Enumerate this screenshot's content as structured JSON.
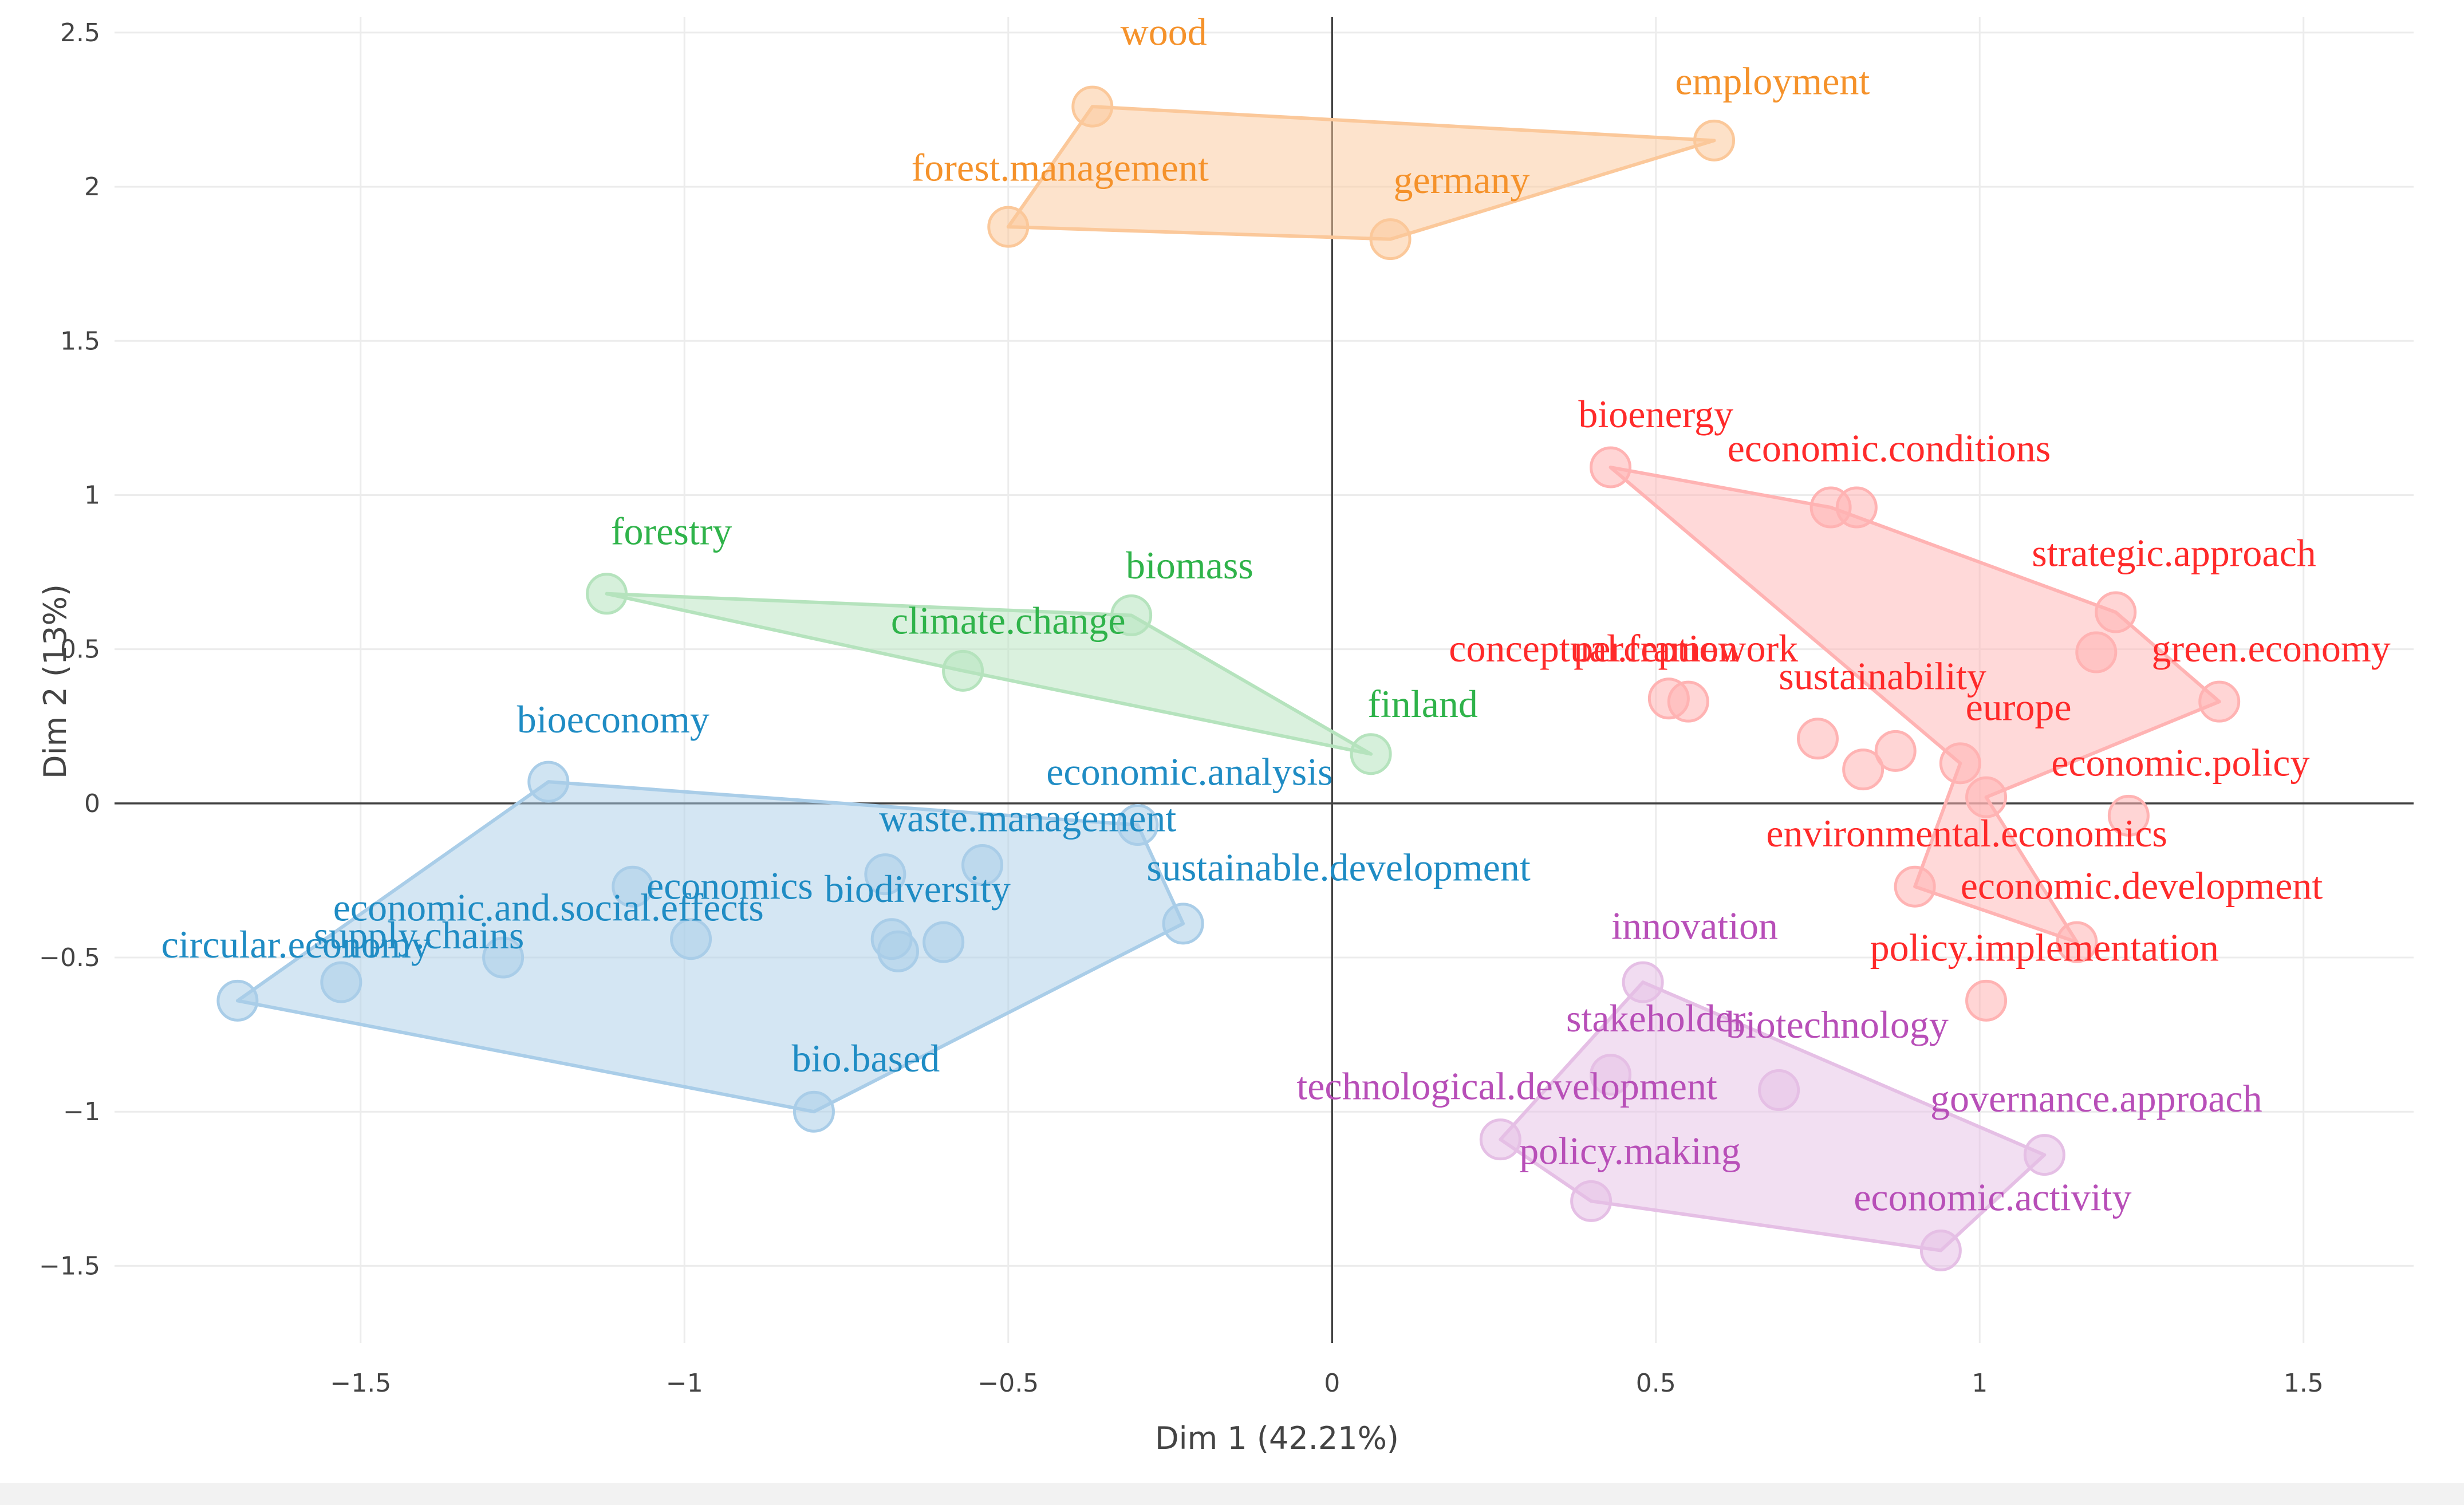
{
  "chart_data": {
    "type": "scatter",
    "title": "",
    "xlabel": "Dim 1 (42.21%)",
    "ylabel": "Dim 2 (13%)",
    "xlim": [
      -1.88,
      1.67
    ],
    "ylim": [
      -1.75,
      2.55
    ],
    "xticks": [
      -1.5,
      -1,
      -0.5,
      0,
      0.5,
      1,
      1.5
    ],
    "xtick_labels": [
      "−1.5",
      "−1",
      "−0.5",
      "0",
      "0.5",
      "1",
      "1.5"
    ],
    "yticks": [
      -1.5,
      -1,
      -0.5,
      0,
      0.5,
      1,
      1.5,
      2,
      2.5
    ],
    "ytick_labels": [
      "−1.5",
      "−1",
      "−0.5",
      "0",
      "0.5",
      "1",
      "1.5",
      "2",
      "2.5"
    ],
    "grid": true,
    "series": [
      {
        "color": "#f5922b",
        "fill": "#fbc89a",
        "hull": [
          "wood",
          "employment",
          "germany",
          "forest.management"
        ],
        "points": [
          {
            "label": "wood",
            "x": -0.37,
            "y": 2.26
          },
          {
            "label": "employment",
            "x": 0.59,
            "y": 2.15
          },
          {
            "label": "forest.management",
            "x": -0.5,
            "y": 1.87
          },
          {
            "label": "germany",
            "x": 0.09,
            "y": 1.83
          }
        ]
      },
      {
        "color": "#ff2a2a",
        "fill": "#ffb3b3",
        "hull": [
          "bioenergy",
          "economic.conditions",
          "strategic.approach",
          "green.economy",
          "economic.policy",
          "policy.implementation",
          "economic.development",
          "europe"
        ],
        "points": [
          {
            "label": "bioenergy",
            "x": 0.43,
            "y": 1.09
          },
          {
            "label": "economic.conditions",
            "x": 0.77,
            "y": 0.96
          },
          {
            "label": "economic.conditions_b",
            "x": 0.81,
            "y": 0.96,
            "unlabeled": true
          },
          {
            "label": "strategic.approach",
            "x": 1.21,
            "y": 0.62
          },
          {
            "label": "green.economy_b",
            "x": 1.18,
            "y": 0.49,
            "unlabeled": true
          },
          {
            "label": "green.economy",
            "x": 1.37,
            "y": 0.33
          },
          {
            "label": "conceptual.framework",
            "x": 0.52,
            "y": 0.34
          },
          {
            "label": "perception",
            "x": 0.55,
            "y": 0.33
          },
          {
            "label": "sustainability",
            "x": 0.75,
            "y": 0.21
          },
          {
            "label": "sustainability_b",
            "x": 0.82,
            "y": 0.11,
            "unlabeled": true
          },
          {
            "label": "sustainability_c",
            "x": 0.87,
            "y": 0.17,
            "unlabeled": true
          },
          {
            "label": "europe",
            "x": 0.97,
            "y": 0.13
          },
          {
            "label": "economic.policy",
            "x": 1.01,
            "y": 0.02
          },
          {
            "label": "environmental.economics",
            "x": 1.23,
            "y": -0.04
          },
          {
            "label": "economic.development",
            "x": 0.9,
            "y": -0.27
          },
          {
            "label": "policy.implementation",
            "x": 1.15,
            "y": -0.45
          },
          {
            "label": "policy.implementation_b",
            "x": 1.01,
            "y": -0.64,
            "unlabeled": true
          }
        ]
      },
      {
        "color": "#2fb34a",
        "fill": "#b5e3bd",
        "hull": [
          "forestry",
          "biomass",
          "finland",
          "climate.change"
        ],
        "points": [
          {
            "label": "forestry",
            "x": -1.12,
            "y": 0.68
          },
          {
            "label": "biomass",
            "x": -0.31,
            "y": 0.61
          },
          {
            "label": "climate.change",
            "x": -0.57,
            "y": 0.43
          },
          {
            "label": "finland",
            "x": 0.06,
            "y": 0.16
          }
        ]
      },
      {
        "color": "#1f8cc4",
        "fill": "#a9cde8",
        "hull": [
          "bioeconomy",
          "economic.analysis",
          "sustainable.development",
          "bio.based",
          "circular.economy"
        ],
        "points": [
          {
            "label": "bioeconomy",
            "x": -1.21,
            "y": 0.07
          },
          {
            "label": "economic.analysis",
            "x": -0.3,
            "y": -0.07
          },
          {
            "label": "waste.management",
            "x": -0.54,
            "y": -0.2
          },
          {
            "label": "economics",
            "x": -1.08,
            "y": -0.27
          },
          {
            "label": "sustainable.development",
            "x": -0.23,
            "y": -0.39
          },
          {
            "label": "biodiversity",
            "x": -0.69,
            "y": -0.23
          },
          {
            "label": "biodiversity_b",
            "x": -0.68,
            "y": -0.44,
            "unlabeled": true
          },
          {
            "label": "biodiversity_c",
            "x": -0.67,
            "y": -0.48,
            "unlabeled": true
          },
          {
            "label": "biodiversity_d",
            "x": -0.6,
            "y": -0.45,
            "unlabeled": true
          },
          {
            "label": "economic.and.social.effects",
            "x": -0.99,
            "y": -0.44
          },
          {
            "label": "supply.chains",
            "x": -1.28,
            "y": -0.5
          },
          {
            "label": "circular.economy_b",
            "x": -1.53,
            "y": -0.58,
            "unlabeled": true
          },
          {
            "label": "circular.economy",
            "x": -1.69,
            "y": -0.64
          },
          {
            "label": "bio.based",
            "x": -0.8,
            "y": -1.0
          }
        ]
      },
      {
        "color": "#b84fb8",
        "fill": "#e5bfe5",
        "hull": [
          "innovation",
          "governance.approach",
          "economic.activity",
          "policy.making",
          "technological.development"
        ],
        "points": [
          {
            "label": "innovation",
            "x": 0.48,
            "y": -0.58
          },
          {
            "label": "stakeholder",
            "x": 0.43,
            "y": -0.88
          },
          {
            "label": "biotechnology",
            "x": 0.69,
            "y": -0.93
          },
          {
            "label": "technological.development",
            "x": 0.26,
            "y": -1.09
          },
          {
            "label": "governance.approach",
            "x": 1.1,
            "y": -1.14
          },
          {
            "label": "policy.making",
            "x": 0.4,
            "y": -1.29
          },
          {
            "label": "economic.activity",
            "x": 0.94,
            "y": -1.45
          }
        ]
      }
    ],
    "labels": [
      {
        "text": "wood",
        "color": "#f5922b",
        "x": -0.26,
        "y": 2.46
      },
      {
        "text": "employment",
        "color": "#f5922b",
        "x": 0.68,
        "y": 2.3
      },
      {
        "text": "forest.management",
        "color": "#f5922b",
        "x": -0.42,
        "y": 2.02
      },
      {
        "text": "germany",
        "color": "#f5922b",
        "x": 0.2,
        "y": 1.98
      },
      {
        "text": "bioenergy",
        "color": "#ff2a2a",
        "x": 0.5,
        "y": 1.22
      },
      {
        "text": "economic.conditions",
        "color": "#ff2a2a",
        "x": 0.86,
        "y": 1.11
      },
      {
        "text": "strategic.approach",
        "color": "#ff2a2a",
        "x": 1.3,
        "y": 0.77
      },
      {
        "text": "green.economy",
        "color": "#ff2a2a",
        "x": 1.45,
        "y": 0.46
      },
      {
        "text": "conceptual.framework",
        "color": "#ff2a2a",
        "x": 0.45,
        "y": 0.46
      },
      {
        "text": "perception",
        "color": "#ff2a2a",
        "x": 0.5,
        "y": 0.46
      },
      {
        "text": "sustainability",
        "color": "#ff2a2a",
        "x": 0.85,
        "y": 0.37
      },
      {
        "text": "europe",
        "color": "#ff2a2a",
        "x": 1.06,
        "y": 0.27
      },
      {
        "text": "economic.policy",
        "color": "#ff2a2a",
        "x": 1.31,
        "y": 0.09
      },
      {
        "text": "environmental.economics",
        "color": "#ff2a2a",
        "x": 0.98,
        "y": -0.14
      },
      {
        "text": "economic.development",
        "color": "#ff2a2a",
        "x": 1.25,
        "y": -0.31
      },
      {
        "text": "policy.implementation",
        "color": "#ff2a2a",
        "x": 1.1,
        "y": -0.51
      },
      {
        "text": "forestry",
        "color": "#2fb34a",
        "x": -1.02,
        "y": 0.84
      },
      {
        "text": "biomass",
        "color": "#2fb34a",
        "x": -0.22,
        "y": 0.73
      },
      {
        "text": "climate.change",
        "color": "#2fb34a",
        "x": -0.5,
        "y": 0.55
      },
      {
        "text": "finland",
        "color": "#2fb34a",
        "x": 0.14,
        "y": 0.28
      },
      {
        "text": "bioeconomy",
        "color": "#1f8cc4",
        "x": -1.11,
        "y": 0.23
      },
      {
        "text": "economic.analysis",
        "color": "#1f8cc4",
        "x": -0.22,
        "y": 0.06
      },
      {
        "text": "waste.management",
        "color": "#1f8cc4",
        "x": -0.47,
        "y": -0.09
      },
      {
        "text": "sustainable.development",
        "color": "#1f8cc4",
        "x": 0.01,
        "y": -0.25
      },
      {
        "text": "economics",
        "color": "#1f8cc4",
        "x": -0.93,
        "y": -0.31
      },
      {
        "text": "biodiversity",
        "color": "#1f8cc4",
        "x": -0.64,
        "y": -0.32
      },
      {
        "text": "economic.and.social.effects",
        "color": "#1f8cc4",
        "x": -1.21,
        "y": -0.38
      },
      {
        "text": "supply.chains",
        "color": "#1f8cc4",
        "x": -1.41,
        "y": -0.47
      },
      {
        "text": "circular.economy",
        "color": "#1f8cc4",
        "x": -1.6,
        "y": -0.5
      },
      {
        "text": "bio.based",
        "color": "#1f8cc4",
        "x": -0.72,
        "y": -0.87
      },
      {
        "text": "innovation",
        "color": "#b84fb8",
        "x": 0.56,
        "y": -0.44
      },
      {
        "text": "stakeholder",
        "color": "#b84fb8",
        "x": 0.5,
        "y": -0.74
      },
      {
        "text": "biotechnology",
        "color": "#b84fb8",
        "x": 0.78,
        "y": -0.76
      },
      {
        "text": "technological.development",
        "color": "#b84fb8",
        "x": 0.27,
        "y": -0.96
      },
      {
        "text": "governance.approach",
        "color": "#b84fb8",
        "x": 1.18,
        "y": -1.0
      },
      {
        "text": "policy.making",
        "color": "#b84fb8",
        "x": 0.46,
        "y": -1.17
      },
      {
        "text": "economic.activity",
        "color": "#b84fb8",
        "x": 1.02,
        "y": -1.32
      }
    ]
  }
}
